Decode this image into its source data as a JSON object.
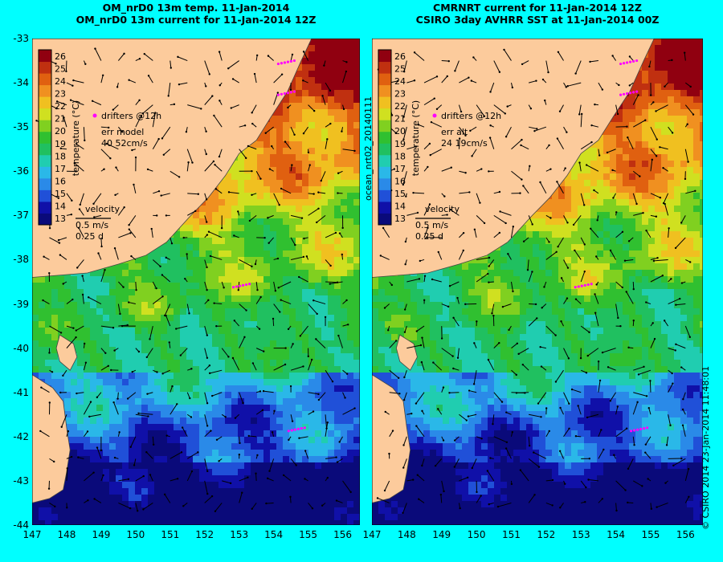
{
  "chart_data": [
    {
      "type": "heatmap",
      "title": "OM_nrD0 13m temp. 11-Jan-2014",
      "subtitle": "OM_nrD0 13m current for 11-Jan-2014 12Z",
      "xlim": [
        147,
        156.5
      ],
      "ylim": [
        -44,
        -33
      ],
      "xticks": [
        147,
        148,
        149,
        150,
        151,
        152,
        153,
        154,
        155,
        156
      ],
      "yticks": [
        -33,
        -34,
        -35,
        -36,
        -37,
        -38,
        -39,
        -40,
        -41,
        -42,
        -43,
        -44
      ],
      "colorbar": {
        "label": "temperature (°C)",
        "ticks": [
          13,
          14,
          15,
          16,
          17,
          18,
          19,
          20,
          21,
          22,
          23,
          24,
          25,
          26
        ]
      },
      "legend": {
        "drifters": "drifters @12h",
        "err_line1": "err model",
        "err_line2": "40 52cm/s",
        "velocity": "velocity",
        "scale_speed": "0.5 m/s",
        "scale_time": "0.25 d"
      },
      "drifters": [
        [
          154.6,
          -33.5
        ],
        [
          154.6,
          -34.2
        ],
        [
          153.3,
          -38.55
        ],
        [
          154.9,
          -41.8
        ]
      ],
      "seed": 7
    },
    {
      "type": "heatmap",
      "title": "CMRNRT current for 11-Jan-2014 12Z",
      "subtitle": "CSIRO 3day AVHRR SST at 11-Jan-2014 00Z",
      "xlim": [
        147,
        156.5
      ],
      "ylim": [
        -44,
        -33
      ],
      "xticks": [
        147,
        148,
        149,
        150,
        151,
        152,
        153,
        154,
        155,
        156
      ],
      "yticks": [
        -33,
        -34,
        -35,
        -36,
        -37,
        -38,
        -39,
        -40,
        -41,
        -42,
        -43,
        -44
      ],
      "colorbar": {
        "label": "temperature (°C)",
        "ticks": [
          13,
          14,
          15,
          16,
          17,
          18,
          19,
          20,
          21,
          22,
          23,
          24,
          25,
          26
        ]
      },
      "legend": {
        "drifters": "drifters @12h",
        "err_line1": "err alt",
        "err_line2": "24 19cm/s",
        "velocity": "velocity",
        "scale_speed": "0.5 m/s",
        "scale_time": "0.25 d"
      },
      "drifters": [
        [
          154.6,
          -33.5
        ],
        [
          154.6,
          -34.2
        ],
        [
          153.3,
          -38.55
        ],
        [
          154.9,
          -41.8
        ]
      ],
      "seed": 19
    }
  ],
  "side_label": "ocean_nrt02_20140111",
  "credit": "© CSIRO 2014   23-Jan-2014 11:48:01",
  "colors": {
    "background": "#00ffff",
    "land": "#fccb9c",
    "drifter": "#ff00ff"
  }
}
